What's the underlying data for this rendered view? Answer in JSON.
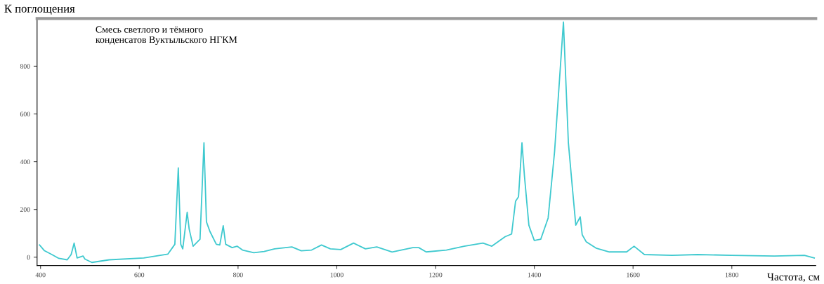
{
  "chart_data": {
    "type": "line",
    "title": "Смесь светлого и тёмного\nконденсатов Вуктыльского НГКМ",
    "ylabel": "К поглощения",
    "xlabel": "Частота, см",
    "x": [
      398,
      408,
      423,
      437,
      454,
      462,
      468,
      474,
      486,
      490,
      504,
      539,
      609,
      658,
      672,
      679,
      684,
      688,
      697,
      701,
      709,
      723,
      731,
      736,
      743,
      756,
      763,
      770,
      775,
      788,
      798,
      809,
      832,
      853,
      874,
      909,
      928,
      949,
      969,
      987,
      1008,
      1034,
      1058,
      1081,
      1112,
      1154,
      1166,
      1181,
      1222,
      1258,
      1296,
      1314,
      1341,
      1354,
      1362,
      1368,
      1375,
      1380,
      1389,
      1400,
      1413,
      1428,
      1441,
      1459,
      1469,
      1477,
      1484,
      1493,
      1497,
      1505,
      1525,
      1552,
      1587,
      1602,
      1623,
      1679,
      1731,
      1799,
      1886,
      1947,
      1967
    ],
    "series": [
      {
        "color": "#3fc9cf",
        "values": [
          51,
          27,
          11,
          -5,
          -11,
          11,
          59,
          -3,
          5,
          -8,
          -22,
          -11,
          -3,
          13,
          54,
          374,
          54,
          35,
          188,
          118,
          46,
          75,
          479,
          148,
          108,
          54,
          51,
          132,
          54,
          40,
          46,
          30,
          19,
          24,
          35,
          43,
          27,
          30,
          51,
          35,
          32,
          59,
          35,
          43,
          22,
          40,
          40,
          22,
          30,
          46,
          59,
          46,
          86,
          97,
          234,
          253,
          479,
          341,
          134,
          70,
          75,
          164,
          441,
          985,
          479,
          293,
          134,
          169,
          94,
          65,
          38,
          22,
          22,
          46,
          11,
          8,
          11,
          8,
          5,
          8,
          -3
        ]
      }
    ],
    "xlim": [
      393,
      1970
    ],
    "ylim": [
      -35,
      1000
    ],
    "xticks": [
      400,
      600,
      800,
      1000,
      1200,
      1400,
      1600,
      1800
    ],
    "yticks": [
      0,
      200,
      400,
      600,
      800
    ],
    "grid": false,
    "legend": false,
    "marker": "none",
    "line_style": "solid"
  }
}
